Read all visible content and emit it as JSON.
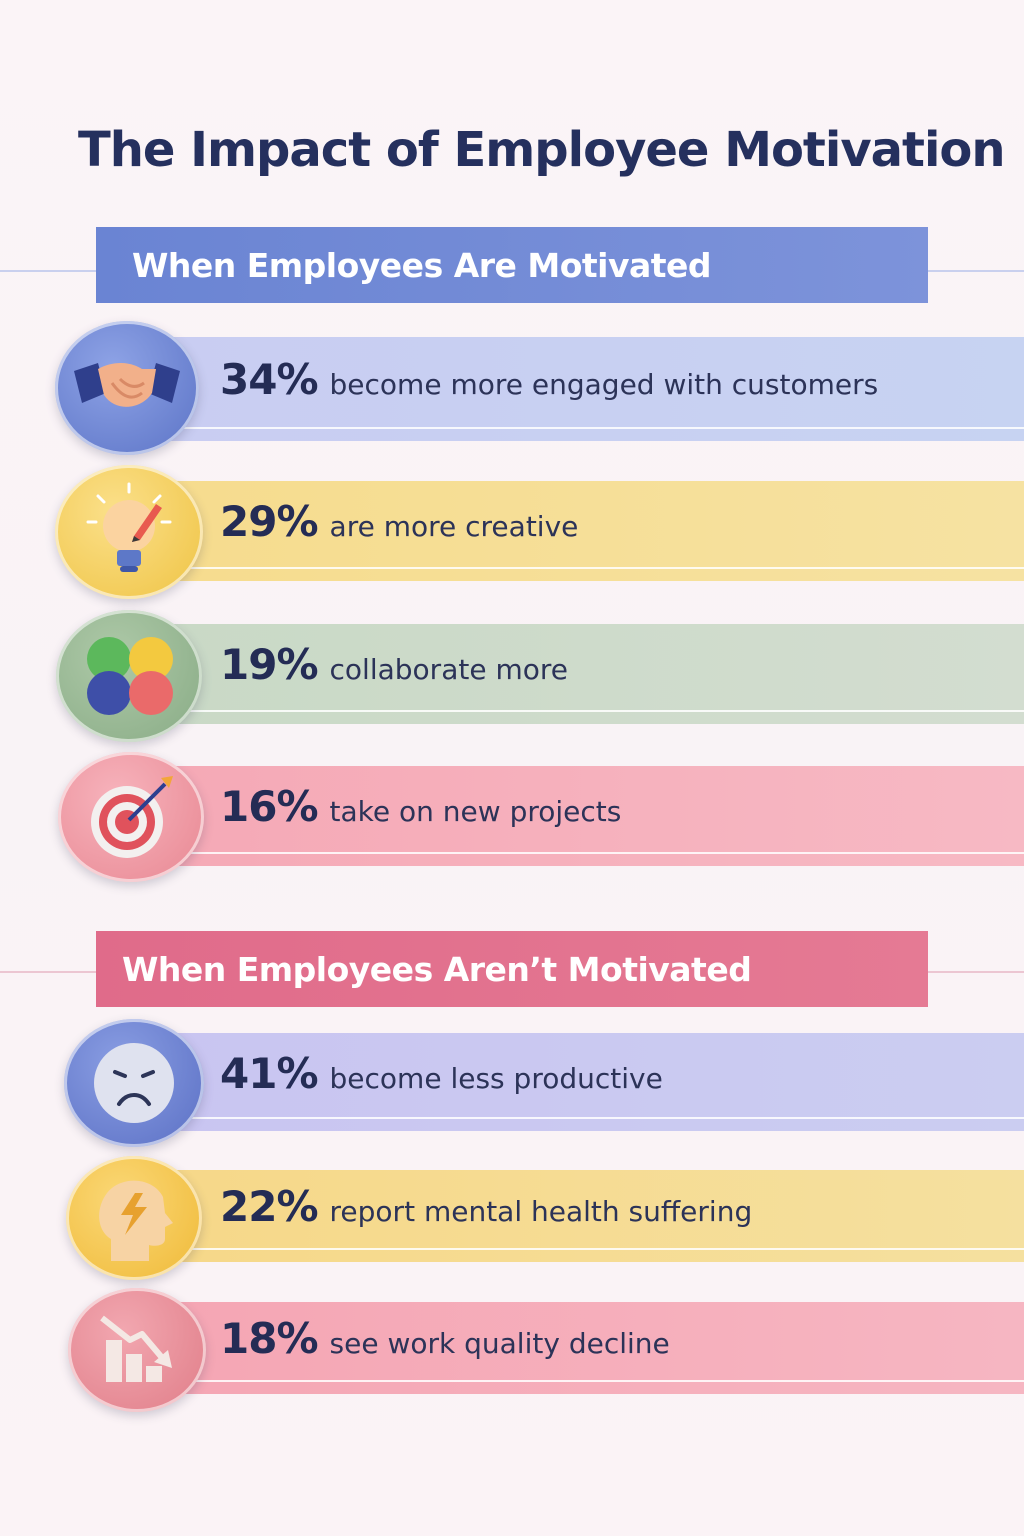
{
  "title": "The Impact of Employee Motivation",
  "sections": [
    {
      "header": "When Employees Are Motivated",
      "color": "#6d86d4",
      "items": [
        {
          "percent": "34%",
          "text": "become more engaged with customers",
          "icon": "handshake-icon",
          "value": 34
        },
        {
          "percent": "29%",
          "text": "are more creative",
          "icon": "lightbulb-pencil-icon",
          "value": 29
        },
        {
          "percent": "19%",
          "text": "collaborate more",
          "icon": "colored-circles-icon",
          "value": 19
        },
        {
          "percent": "16%",
          "text": "take on new projects",
          "icon": "target-icon",
          "value": 16
        }
      ]
    },
    {
      "header": "When Employees Aren’t Motivated",
      "color": "#df6e8c",
      "items": [
        {
          "percent": "41%",
          "text": "become less productive",
          "icon": "sad-face-icon",
          "value": 41
        },
        {
          "percent": "22%",
          "text": "report mental health suffering",
          "icon": "head-lightning-icon",
          "value": 22
        },
        {
          "percent": "18%",
          "text": "see work quality decline",
          "icon": "declining-chart-icon",
          "value": 18
        }
      ]
    }
  ]
}
